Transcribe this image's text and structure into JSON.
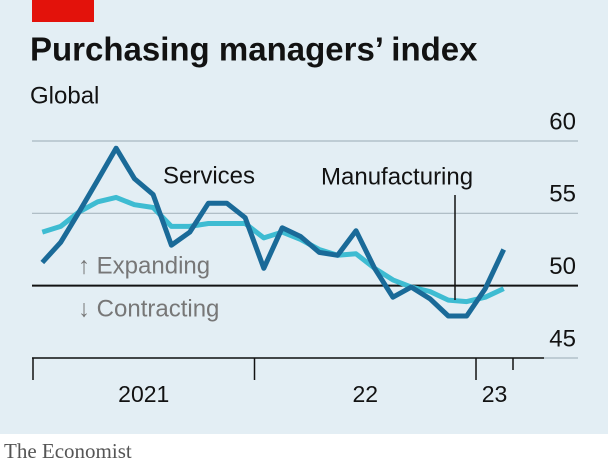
{
  "chart_data": {
    "type": "line",
    "title": "Purchasing managers’ index",
    "subtitle": "Global",
    "source": "The Economist",
    "x": [
      2021.042,
      2021.125,
      2021.208,
      2021.292,
      2021.375,
      2021.458,
      2021.542,
      2021.625,
      2021.708,
      2021.792,
      2021.875,
      2021.958,
      2022.042,
      2022.125,
      2022.208,
      2022.292,
      2022.375,
      2022.458,
      2022.542,
      2022.625,
      2022.708,
      2022.792,
      2022.875,
      2022.958,
      2023.042,
      2023.125
    ],
    "xlim": [
      2021,
      2023.167
    ],
    "xticks": [
      {
        "value": 2021,
        "label": "2021"
      },
      {
        "value": 2022,
        "label": "22"
      },
      {
        "value": 2023,
        "label": "23"
      }
    ],
    "ylim": [
      45,
      60
    ],
    "yticks": [
      45,
      50,
      55,
      60
    ],
    "grid": true,
    "series": [
      {
        "name": "Manufacturing",
        "color": "#3ebcd2",
        "values": [
          53.7,
          54.1,
          55.1,
          55.8,
          56.1,
          55.6,
          55.4,
          54.1,
          54.1,
          54.3,
          54.3,
          54.3,
          53.3,
          53.7,
          53.2,
          52.5,
          52.1,
          52.2,
          51.2,
          50.4,
          49.9,
          49.6,
          49.0,
          48.9,
          49.2,
          49.8
        ]
      },
      {
        "name": "Services",
        "color": "#1a6a98",
        "values": [
          51.6,
          53.0,
          55.1,
          57.3,
          59.5,
          57.4,
          56.3,
          52.8,
          53.7,
          55.7,
          55.7,
          54.7,
          51.2,
          54.0,
          53.4,
          52.3,
          52.1,
          53.8,
          51.2,
          49.2,
          49.9,
          49.1,
          47.9,
          47.9,
          49.8,
          52.5
        ]
      }
    ],
    "annotations": [
      "↑ Expanding",
      "↓ Contracting"
    ]
  }
}
